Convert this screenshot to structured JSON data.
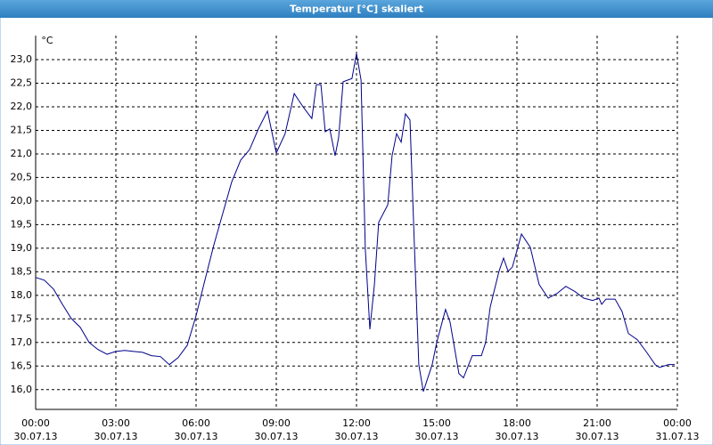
{
  "chart_data": {
    "type": "line",
    "title": "Temperatur [°C] skaliert",
    "y_unit": "°C",
    "x": [
      0,
      0.33,
      0.67,
      1,
      1.33,
      1.67,
      2,
      2.33,
      2.67,
      3,
      3.33,
      3.67,
      4,
      4.33,
      4.67,
      5,
      5.33,
      5.67,
      6,
      6.33,
      6.67,
      7,
      7.33,
      7.67,
      8,
      8.33,
      8.67,
      9,
      9.33,
      9.67,
      10,
      10.33,
      10.5,
      10.67,
      10.83,
      11,
      11.2,
      11.33,
      11.5,
      11.83,
      12,
      12.17,
      12.33,
      12.5,
      12.67,
      12.83,
      13.17,
      13.33,
      13.5,
      13.67,
      13.83,
      14,
      14.17,
      14.33,
      14.5,
      14.83,
      15,
      15.33,
      15.5,
      15.83,
      16,
      16.33,
      16.67,
      16.83,
      17,
      17.33,
      17.5,
      17.67,
      17.83,
      18.17,
      18.5,
      18.83,
      19.17,
      19.5,
      19.83,
      20.17,
      20.5,
      20.83,
      21.07,
      21.17,
      21.33,
      21.67,
      21.93,
      22.17,
      22.5,
      22.83,
      23.17,
      23.33,
      23.67,
      23.9
    ],
    "series": [
      {
        "name": "Temperatur",
        "color": "#00008b",
        "values": [
          18.38,
          18.32,
          18.13,
          17.81,
          17.51,
          17.32,
          17.0,
          16.85,
          16.75,
          16.81,
          16.83,
          16.81,
          16.79,
          16.72,
          16.7,
          16.53,
          16.68,
          16.94,
          17.57,
          18.32,
          19.08,
          19.74,
          20.4,
          20.87,
          21.09,
          21.53,
          21.91,
          21.02,
          21.43,
          22.28,
          22.0,
          21.75,
          22.47,
          22.47,
          21.47,
          21.53,
          20.96,
          21.34,
          22.53,
          22.6,
          23.13,
          22.57,
          18.98,
          17.28,
          18.23,
          19.55,
          19.92,
          20.96,
          21.43,
          21.25,
          21.85,
          21.72,
          18.98,
          16.53,
          15.96,
          16.53,
          17.0,
          17.7,
          17.43,
          16.34,
          16.25,
          16.72,
          16.72,
          17.0,
          17.75,
          18.51,
          18.79,
          18.51,
          18.6,
          19.3,
          19.02,
          18.23,
          17.94,
          18.04,
          18.19,
          18.08,
          17.94,
          17.89,
          17.94,
          17.81,
          17.92,
          17.92,
          17.66,
          17.19,
          17.06,
          16.81,
          16.53,
          16.47,
          16.53,
          16.53
        ]
      }
    ],
    "xlim": [
      0,
      24
    ],
    "xticks": [
      {
        "value": 0,
        "label": [
          "00:00",
          "30.07.13"
        ]
      },
      {
        "value": 3,
        "label": [
          "03:00",
          "30.07.13"
        ]
      },
      {
        "value": 6,
        "label": [
          "06:00",
          "30.07.13"
        ]
      },
      {
        "value": 9,
        "label": [
          "09:00",
          "30.07.13"
        ]
      },
      {
        "value": 12,
        "label": [
          "12:00",
          "30.07.13"
        ]
      },
      {
        "value": 15,
        "label": [
          "15:00",
          "30.07.13"
        ]
      },
      {
        "value": 18,
        "label": [
          "18:00",
          "30.07.13"
        ]
      },
      {
        "value": 21,
        "label": [
          "21:00",
          "30.07.13"
        ]
      },
      {
        "value": 24,
        "label": [
          "00:00",
          "31.07.13"
        ]
      }
    ],
    "ylim": [
      15.58,
      23.51
    ],
    "yticks": [
      {
        "value": 16,
        "label": "16,0"
      },
      {
        "value": 16.5,
        "label": "16,5"
      },
      {
        "value": 17,
        "label": "17,0"
      },
      {
        "value": 17.5,
        "label": "17,5"
      },
      {
        "value": 18,
        "label": "18,0"
      },
      {
        "value": 18.5,
        "label": "18,5"
      },
      {
        "value": 19,
        "label": "19,0"
      },
      {
        "value": 19.5,
        "label": "19,5"
      },
      {
        "value": 20,
        "label": "20,0"
      },
      {
        "value": 20.5,
        "label": "20,5"
      },
      {
        "value": 21,
        "label": "21,0"
      },
      {
        "value": 21.5,
        "label": "21,5"
      },
      {
        "value": 22,
        "label": "22,0"
      },
      {
        "value": 22.5,
        "label": "22,5"
      },
      {
        "value": 23,
        "label": "23,0"
      }
    ],
    "grid": true
  }
}
